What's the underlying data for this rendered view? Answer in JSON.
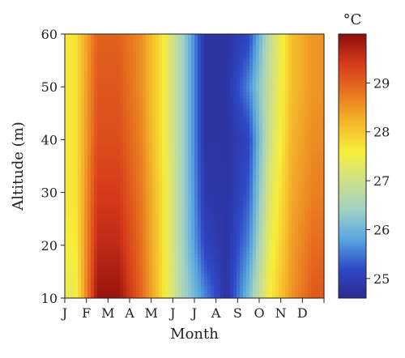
{
  "chart_data": {
    "type": "heatmap",
    "xlabel": "Month",
    "ylabel": "Altitude (m)",
    "x_categories": [
      "J",
      "F",
      "M",
      "A",
      "M",
      "J",
      "J",
      "A",
      "S",
      "O",
      "N",
      "D"
    ],
    "y_ticks": [
      10,
      20,
      30,
      40,
      50,
      60
    ],
    "ylim": [
      10,
      60
    ],
    "colorbar": {
      "unit_label": "°C",
      "ticks": [
        25,
        26,
        27,
        28,
        29
      ],
      "range": [
        24.6,
        30.0
      ],
      "colors": [
        "#2b2a8f",
        "#2f49c8",
        "#58a6e0",
        "#9fd1c4",
        "#cfe08a",
        "#f7ee3a",
        "#f4b62a",
        "#e8751f",
        "#d63a1a",
        "#8c0c0c"
      ]
    },
    "altitudes_m": [
      10,
      20,
      30,
      40,
      50,
      60
    ],
    "series": [
      {
        "altitude": 10,
        "values": [
          27.4,
          29.9,
          29.9,
          29.0,
          27.8,
          26.5,
          25.6,
          24.8,
          26.1,
          27.6,
          28.5,
          29.1
        ]
      },
      {
        "altitude": 20,
        "values": [
          27.6,
          29.6,
          29.6,
          28.9,
          27.8,
          26.4,
          25.1,
          24.8,
          25.6,
          27.4,
          28.4,
          28.9
        ]
      },
      {
        "altitude": 30,
        "values": [
          27.7,
          29.4,
          29.4,
          28.8,
          27.8,
          26.4,
          24.9,
          24.8,
          25.3,
          27.2,
          28.3,
          28.7
        ]
      },
      {
        "altitude": 40,
        "values": [
          27.7,
          29.2,
          29.2,
          28.7,
          27.7,
          26.4,
          24.8,
          24.8,
          25.1,
          27.0,
          28.2,
          28.6
        ]
      },
      {
        "altitude": 50,
        "values": [
          27.7,
          29.1,
          29.1,
          28.6,
          27.7,
          26.4,
          24.8,
          24.8,
          25.6,
          26.9,
          28.1,
          28.5
        ]
      },
      {
        "altitude": 60,
        "values": [
          27.7,
          29.0,
          29.0,
          28.6,
          27.7,
          26.4,
          24.8,
          24.8,
          25.1,
          26.8,
          28.1,
          28.5
        ]
      }
    ]
  }
}
